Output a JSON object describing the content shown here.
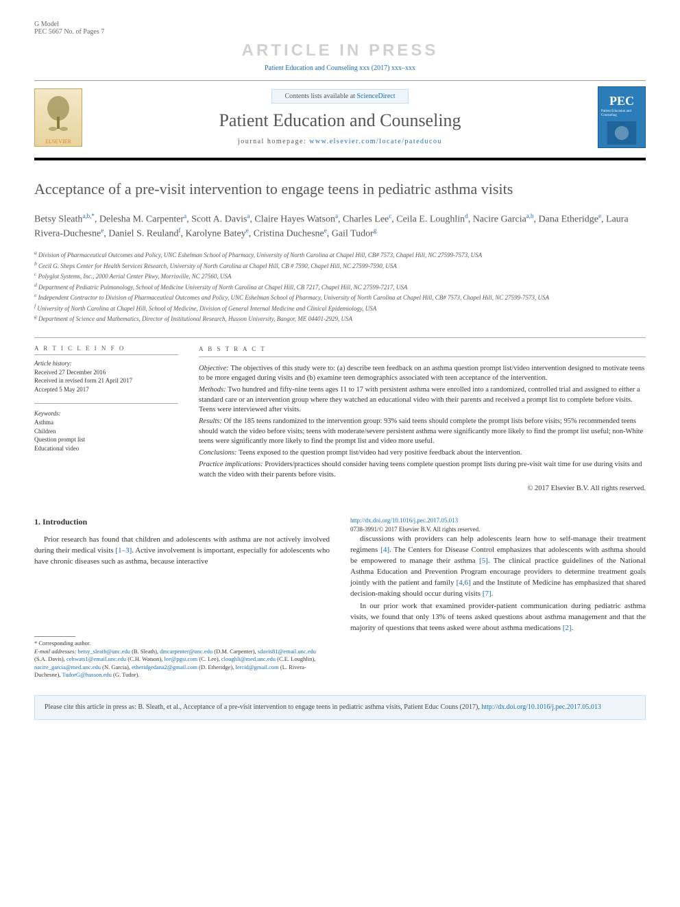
{
  "meta": {
    "model_line": "G Model",
    "model_code": "PEC 5667 No. of Pages 7",
    "watermark": "ARTICLE IN PRESS",
    "journal_ref": "Patient Education and Counseling xxx (2017) xxx–xxx",
    "contents_prefix": "Contents lists available at ",
    "contents_link": "ScienceDirect",
    "journal_title": "Patient Education and Counseling",
    "homepage_prefix": "journal homepage: ",
    "homepage_url": "www.elsevier.com/locate/pateducou",
    "elsevier_label": "ELSEVIER",
    "cover_badge": "PEC",
    "cover_sub": "Patient Education and Counseling"
  },
  "title": "Acceptance of a pre-visit intervention to engage teens in pediatric asthma visits",
  "authors_html": "Betsy Sleath<sup>a,b,*</sup>, Delesha M. Carpenter<sup>a</sup>, Scott A. Davis<sup>a</sup>, Claire Hayes Watson<sup>a</sup>, Charles Lee<sup>c</sup>, Ceila E. Loughlin<sup>d</sup>, Nacire Garcia<sup>a,b</sup>, Dana Etheridge<sup>e</sup>, Laura Rivera-Duchesne<sup>e</sup>, Daniel S. Reuland<sup>f</sup>, Karolyne Batey<sup>e</sup>, Cristina Duchesne<sup>e</sup>, Gail Tudor<sup>g</sup>",
  "affiliations": [
    "a Division of Pharmaceutical Outcomes and Policy, UNC Eshelman School of Pharmacy, University of North Carolina at Chapel Hill, CB# 7573, Chapel Hill, NC 27599-7573, USA",
    "b Cecil G. Sheps Center for Health Services Research, University of North Carolina at Chapel Hill, CB # 7590, Chapel Hill, NC 27599-7590, USA",
    "c Polyglot Systems, Inc., 2000 Aerial Center Pkwy, Morrisville, NC 27560, USA",
    "d Department of Pediatric Pulmonology, School of Medicine University of North Carolina at Chapel Hill, CB 7217, Chapel Hill, NC 27599-7217, USA",
    "e Independent Contractor to Division of Pharmaceutical Outcomes and Policy, UNC Eshelman School of Pharmacy, University of North Carolina at Chapel Hill, CB# 7573, Chapel Hill, NC 27599-7573, USA",
    "f University of North Carolina at Chapel Hill, School of Medicine, Division of General Internal Medicine and Clinical Epidemiology, USA",
    "g Department of Science and Mathematics, Director of Institutional Research, Husson University, Bangor, ME 04401-2929, USA"
  ],
  "article_info": {
    "heading": "A R T I C L E  I N F O",
    "history_label": "Article history:",
    "history": [
      "Received 27 December 2016",
      "Received in revised form 21 April 2017",
      "Accepted 5 May 2017"
    ],
    "keywords_label": "Keywords:",
    "keywords": [
      "Asthma",
      "Children",
      "Question prompt list",
      "Educational video"
    ]
  },
  "abstract": {
    "heading": "A B S T R A C T",
    "parts": [
      {
        "label": "Objective:",
        "text": "The objectives of this study were to: (a) describe teen feedback on an asthma question prompt list/video intervention designed to motivate teens to be more engaged during visits and (b) examine teen demographics associated with teen acceptance of the intervention."
      },
      {
        "label": "Methods:",
        "text": "Two hundred and fifty-nine teens ages 11 to 17 with persistent asthma were enrolled into a randomized, controlled trial and assigned to either a standard care or an intervention group where they watched an educational video with their parents and received a prompt list to complete before visits. Teens were interviewed after visits."
      },
      {
        "label": "Results:",
        "text": "Of the 185 teens randomized to the intervention group: 93% said teens should complete the prompt lists before visits; 95% recommended teens should watch the video before visits; teens with moderate/severe persistent asthma were significantly more likely to find the prompt list useful; non-White teens were significantly more likely to find the prompt list and video more useful."
      },
      {
        "label": "Conclusions:",
        "text": "Teens exposed to the question prompt list/video had very positive feedback about the intervention."
      },
      {
        "label": "Practice implications:",
        "text": "Providers/practices should consider having teens complete question prompt lists during pre-visit wait time for use during visits and watch the video with their parents before visits."
      }
    ],
    "copyright": "© 2017 Elsevier B.V. All rights reserved."
  },
  "body": {
    "intro_heading": "1. Introduction",
    "para1": "Prior research has found that children and adolescents with asthma are not actively involved during their medical visits [1–3]. Active involvement is important, especially for adolescents who have chronic diseases such as asthma, because interactive",
    "para2": "discussions with providers can help adolescents learn how to self-manage their treatment regimens [4]. The Centers for Disease Control emphasizes that adolescents with asthma should be empowered to manage their asthma [5]. The clinical practice guidelines of the National Asthma Education and Prevention Program encourage providers to determine treatment goals jointly with the patient and family [4,6] and the Institute of Medicine has emphasized that shared decision-making should occur during visits [7].",
    "para3": "In our prior work that examined provider-patient communication during pediatric asthma visits, we found that only 13% of teens asked questions about asthma management and that the majority of questions that teens asked were about asthma medications [2]."
  },
  "footnotes": {
    "corr_label": "* Corresponding author.",
    "email_label": "E-mail addresses:",
    "emails": "betsy_sleath@unc.edu (B. Sleath), dmcarpenter@unc.edu (D.M. Carpenter), sdavis81@email.unc.edu (S.A. Davis), cehwats1@email.unc.edu (C.H. Watson), lee@pgsi.com (C. Lee), cloughli@med.unc.edu (C.E. Loughlin), nacire_garcia@med.unc.edu (N. Garcia), etheridgedana2@gmail.com (D. Etheridge), lercid@gmail.com (L. Rivera-Duchesne), TudorG@husson.edu (G. Tudor)."
  },
  "doi": {
    "url": "http://dx.doi.org/10.1016/j.pec.2017.05.013",
    "issn_line": "0738-3991/© 2017 Elsevier B.V. All rights reserved."
  },
  "citation": {
    "text_prefix": "Please cite this article in press as: B. Sleath, et al., Acceptance of a pre-visit intervention to engage teens in pediatric asthma visits, Patient Educ Couns (2017), ",
    "link": "http://dx.doi.org/10.1016/j.pec.2017.05.013"
  },
  "colors": {
    "link": "#1a6bb5",
    "banner_bg": "#eef5fb",
    "banner_border": "#c8dceb",
    "text_muted": "#555555",
    "watermark": "#d0d0d0"
  }
}
